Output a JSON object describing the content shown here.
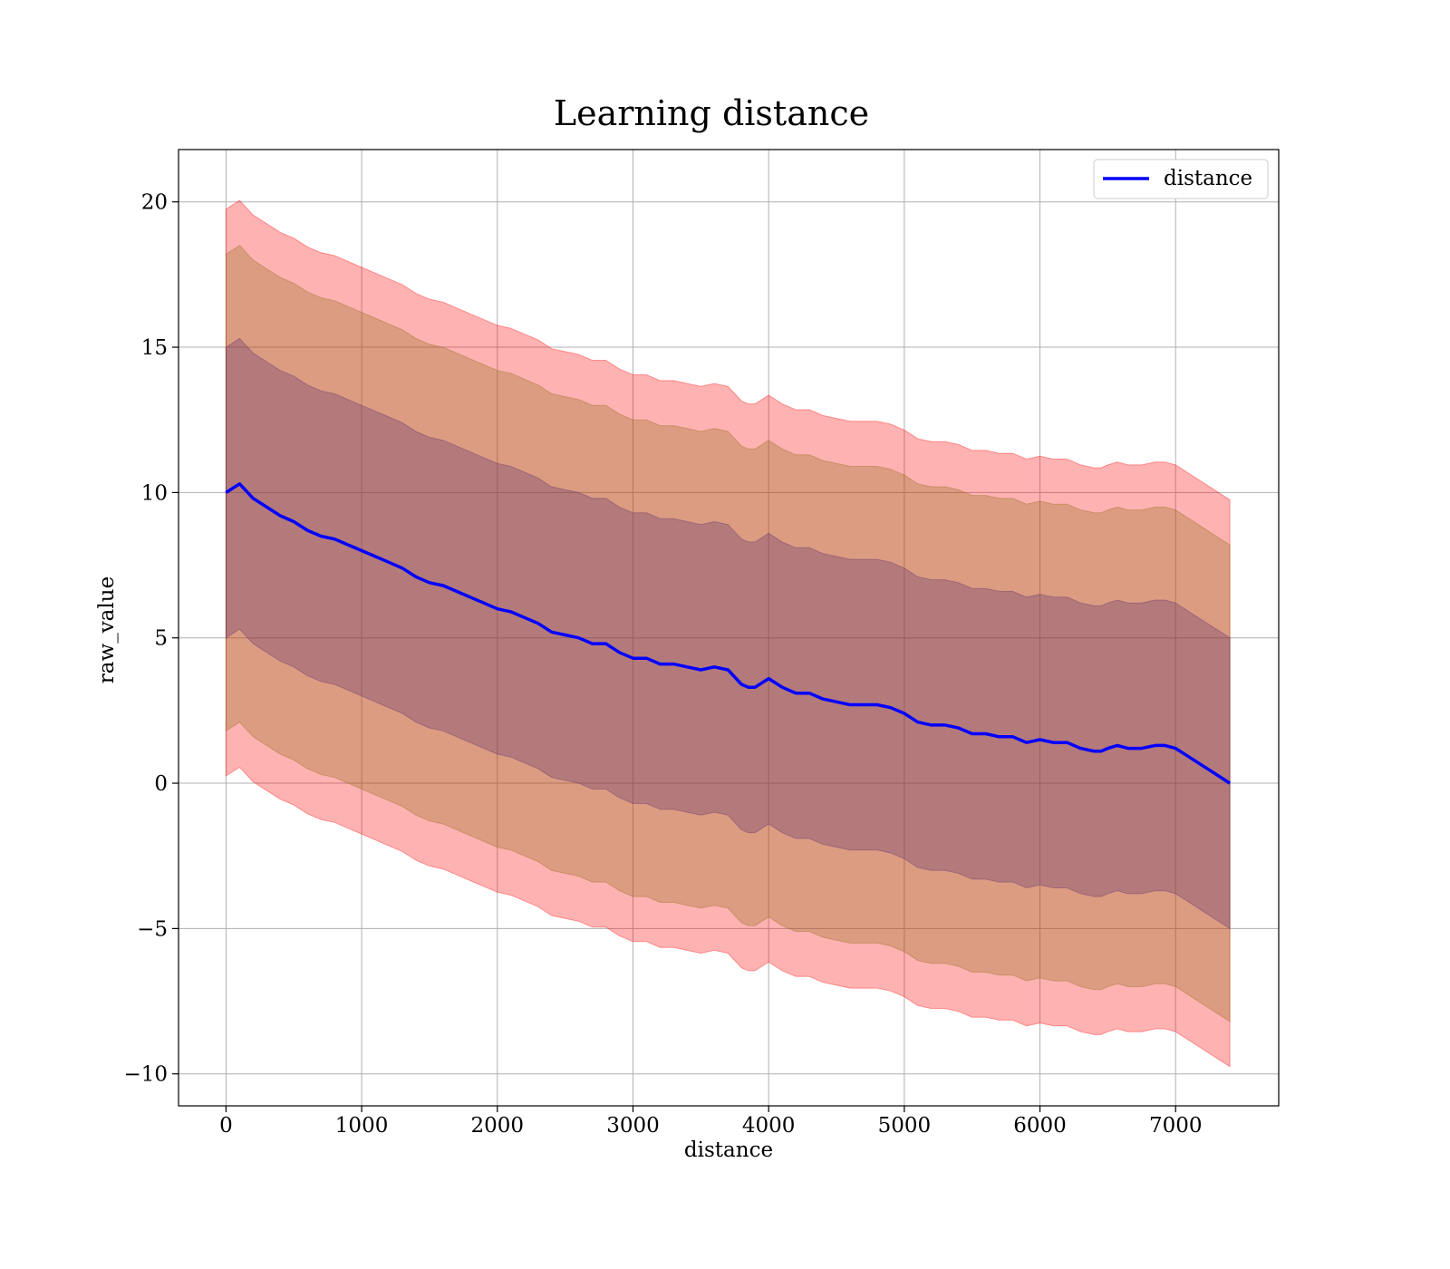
{
  "chart_data": {
    "type": "line",
    "title": "Learning distance",
    "xlabel": "distance",
    "ylabel": "raw_value",
    "xlim": [
      -350,
      7760
    ],
    "ylim": [
      -11.1,
      21.8
    ],
    "xticks": [
      0,
      1000,
      2000,
      3000,
      4000,
      5000,
      6000,
      7000
    ],
    "xtick_labels": [
      "0",
      "1000",
      "2000",
      "3000",
      "4000",
      "5000",
      "6000",
      "7000"
    ],
    "yticks": [
      -10,
      -5,
      0,
      5,
      10,
      15,
      20
    ],
    "ytick_labels": [
      "−10",
      "−5",
      "0",
      "5",
      "10",
      "15",
      "20"
    ],
    "grid": true,
    "legend": {
      "location": "top-right",
      "entries": [
        "distance"
      ]
    },
    "colors": {
      "line": "#0000ff",
      "band_outer": "#ff0000",
      "band_middle": "#8b6914",
      "band_inner": "#5a2a6e"
    },
    "series": [
      {
        "name": "distance",
        "x": [
          0,
          100,
          200,
          300,
          400,
          500,
          600,
          700,
          800,
          900,
          1000,
          1100,
          1200,
          1300,
          1400,
          1500,
          1600,
          1700,
          1800,
          1900,
          2000,
          2100,
          2200,
          2300,
          2400,
          2500,
          2600,
          2700,
          2800,
          2900,
          3000,
          3100,
          3200,
          3300,
          3400,
          3500,
          3600,
          3700,
          3800,
          3850,
          3900,
          4000,
          4100,
          4200,
          4300,
          4400,
          4500,
          4600,
          4700,
          4800,
          4900,
          5000,
          5100,
          5200,
          5300,
          5400,
          5500,
          5600,
          5700,
          5800,
          5900,
          6000,
          6100,
          6200,
          6300,
          6400,
          6450,
          6500,
          6570,
          6650,
          6750,
          6850,
          6920,
          7000,
          7100,
          7200,
          7300,
          7400
        ],
        "values": [
          10.0,
          10.3,
          9.8,
          9.5,
          9.2,
          9.0,
          8.7,
          8.5,
          8.4,
          8.2,
          8.0,
          7.8,
          7.6,
          7.4,
          7.1,
          6.9,
          6.8,
          6.6,
          6.4,
          6.2,
          6.0,
          5.9,
          5.7,
          5.5,
          5.2,
          5.1,
          5.0,
          4.8,
          4.8,
          4.5,
          4.3,
          4.3,
          4.1,
          4.1,
          4.0,
          3.9,
          4.0,
          3.9,
          3.4,
          3.3,
          3.3,
          3.6,
          3.3,
          3.1,
          3.1,
          2.9,
          2.8,
          2.7,
          2.7,
          2.7,
          2.6,
          2.4,
          2.1,
          2.0,
          2.0,
          1.9,
          1.7,
          1.7,
          1.6,
          1.6,
          1.4,
          1.5,
          1.4,
          1.4,
          1.2,
          1.1,
          1.1,
          1.2,
          1.3,
          1.2,
          1.2,
          1.3,
          1.3,
          1.2,
          0.9,
          0.6,
          0.3,
          0.0
        ]
      }
    ],
    "bands": [
      {
        "offset_start": 9.75,
        "offset_end": 9.75
      },
      {
        "offset_start": 8.2,
        "offset_end": 8.2
      },
      {
        "offset_start": 5.0,
        "offset_end": 5.0
      }
    ]
  }
}
